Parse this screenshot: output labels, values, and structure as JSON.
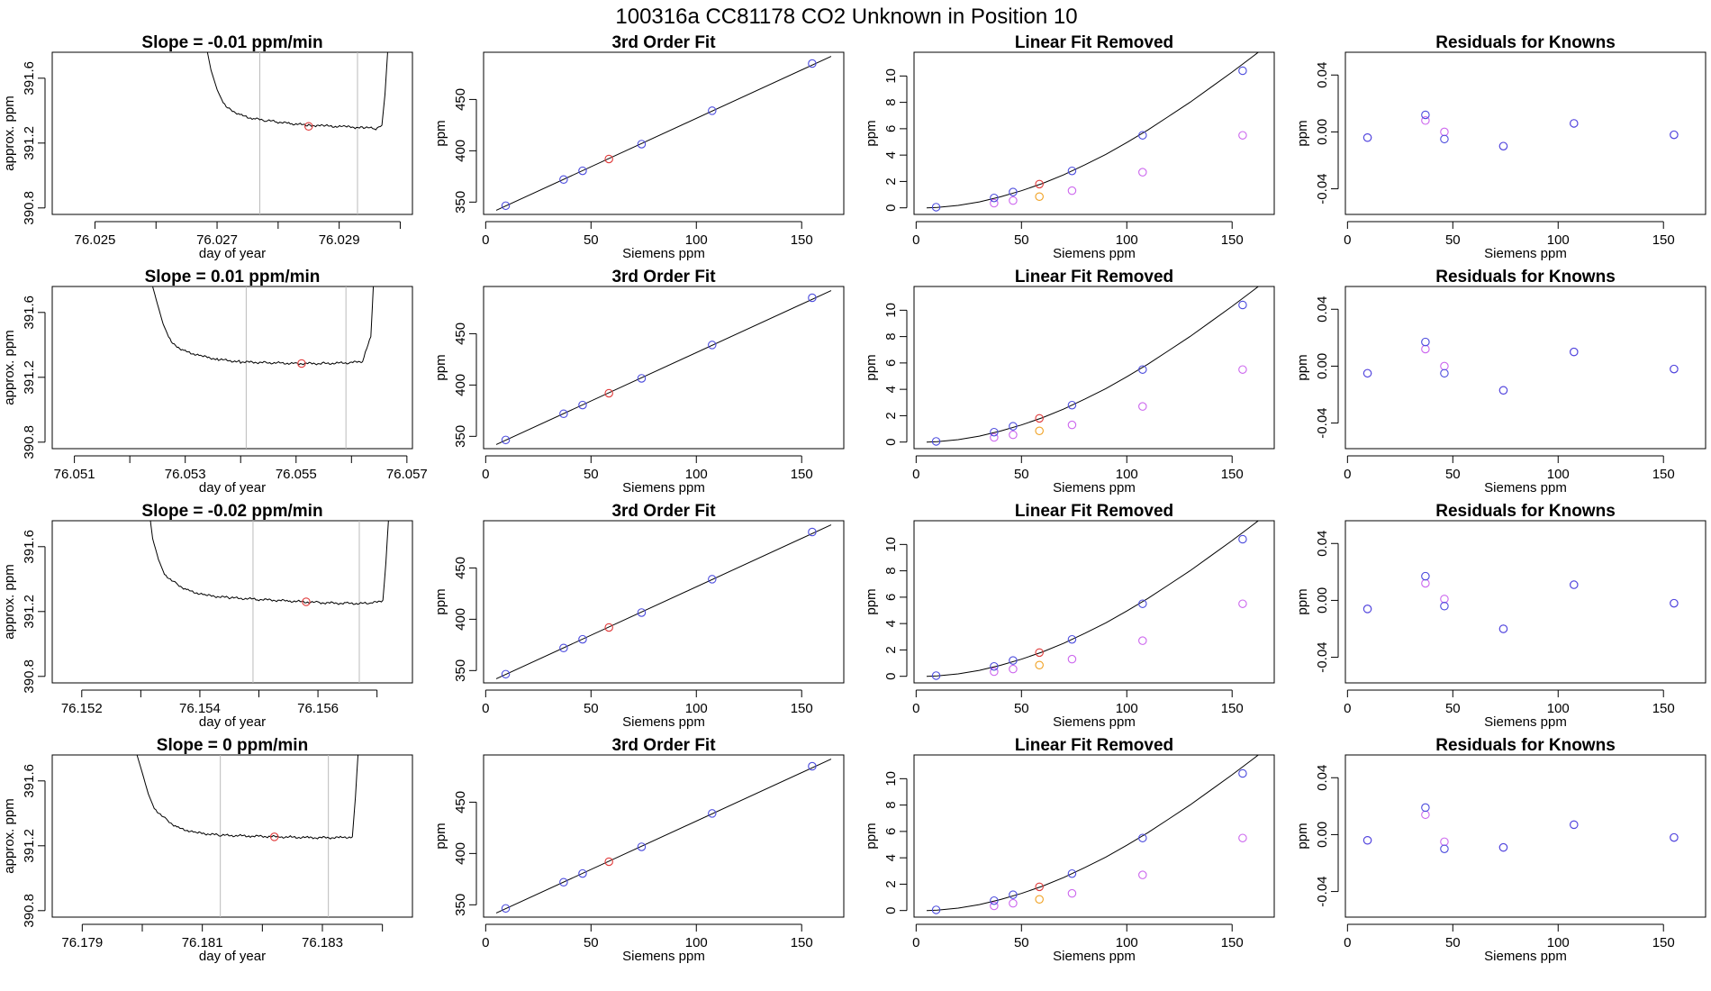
{
  "figure_title": "100316a      CC81178    CO2 Unknown in Position  10",
  "colors": {
    "axis": "#000000",
    "trace": "#000000",
    "vline": "#bbbbbb",
    "sample_marker": "#e03a3a",
    "knowns_marker": "#4b4bdd",
    "linear_removed_marker": "#cc66ee",
    "unknown_removed_marker": "#f0a020"
  },
  "panel_titles": {
    "time_series": [
      "Slope =  -0.01  ppm/min",
      "Slope =  0.01  ppm/min",
      "Slope =  -0.02  ppm/min",
      "Slope =  0  ppm/min"
    ],
    "fit": "3rd Order Fit",
    "linear_removed": "Linear Fit Removed",
    "residuals": "Residuals for Knowns"
  },
  "axis_labels": {
    "ts_x": "day of year",
    "ts_y": "approx. ppm",
    "siemens_x": "Siemens ppm",
    "ppm_y": "ppm"
  },
  "chart_data": [
    {
      "type": "line",
      "row": 0,
      "column": "time_series",
      "title": "Slope =  -0.01  ppm/min",
      "xlabel": "day of year",
      "ylabel": "approx. ppm",
      "xlim": [
        76.0243,
        76.0302
      ],
      "ylim": [
        390.76,
        391.76
      ],
      "x_ticks": [
        "76.025",
        "76.026",
        "76.027",
        "76.028",
        "76.029",
        "76.030"
      ],
      "x_tick_labels": [
        "76.025",
        "",
        "76.027",
        "",
        "76.029",
        ""
      ],
      "y_ticks": [
        "390.8",
        "391.2",
        "391.6"
      ],
      "vlines": [
        76.0277,
        76.0293
      ],
      "sample_point": [
        76.0285,
        391.303
      ],
      "trace": [
        [
          76.02682,
          391.8
        ],
        [
          76.0269,
          391.65
        ],
        [
          76.027,
          391.53
        ],
        [
          76.0271,
          391.45
        ],
        [
          76.0272,
          391.41
        ],
        [
          76.0274,
          391.37
        ],
        [
          76.0276,
          391.35
        ],
        [
          76.0278,
          391.34
        ],
        [
          76.028,
          391.33
        ],
        [
          76.0282,
          391.32
        ],
        [
          76.0285,
          391.31
        ],
        [
          76.0288,
          391.305
        ],
        [
          76.0291,
          391.3
        ],
        [
          76.0294,
          391.295
        ],
        [
          76.0296,
          391.29
        ],
        [
          76.0297,
          391.31
        ],
        [
          76.02975,
          391.5
        ],
        [
          76.0298,
          391.8
        ]
      ]
    },
    {
      "type": "line",
      "row": 1,
      "column": "time_series",
      "title": "Slope =  0.01  ppm/min",
      "xlabel": "day of year",
      "ylabel": "approx. ppm",
      "xlim": [
        76.0506,
        76.0571
      ],
      "ylim": [
        390.76,
        391.76
      ],
      "x_ticks": [
        "76.051",
        "76.052",
        "76.053",
        "76.054",
        "76.055",
        "76.056",
        "76.057"
      ],
      "x_tick_labels": [
        "76.051",
        "",
        "76.053",
        "",
        "76.055",
        "",
        "76.057"
      ],
      "y_ticks": [
        "390.8",
        "391.2",
        "391.6"
      ],
      "vlines": [
        76.0541,
        76.0559
      ],
      "sample_point": [
        76.0551,
        391.285
      ],
      "trace": [
        [
          76.05238,
          391.8
        ],
        [
          76.0525,
          391.65
        ],
        [
          76.0526,
          391.53
        ],
        [
          76.0527,
          391.45
        ],
        [
          76.0528,
          391.4
        ],
        [
          76.053,
          391.36
        ],
        [
          76.0533,
          391.33
        ],
        [
          76.0536,
          391.31
        ],
        [
          76.054,
          391.295
        ],
        [
          76.0545,
          391.29
        ],
        [
          76.055,
          391.285
        ],
        [
          76.0555,
          391.285
        ],
        [
          76.056,
          391.29
        ],
        [
          76.0562,
          391.3
        ],
        [
          76.05635,
          391.45
        ],
        [
          76.0564,
          391.8
        ]
      ]
    },
    {
      "type": "line",
      "row": 2,
      "column": "time_series",
      "title": "Slope =  -0.02  ppm/min",
      "xlabel": "day of year",
      "ylabel": "approx. ppm",
      "xlim": [
        76.1515,
        76.1576
      ],
      "ylim": [
        390.76,
        391.76
      ],
      "x_ticks": [
        "76.152",
        "76.153",
        "76.154",
        "76.155",
        "76.156",
        "76.157"
      ],
      "x_tick_labels": [
        "76.152",
        "",
        "76.154",
        "",
        "76.156",
        ""
      ],
      "y_ticks": [
        "390.8",
        "391.2",
        "391.6"
      ],
      "vlines": [
        76.1549,
        76.1567
      ],
      "sample_point": [
        76.1558,
        391.26
      ],
      "trace": [
        [
          76.15315,
          391.8
        ],
        [
          76.1532,
          391.65
        ],
        [
          76.1533,
          391.52
        ],
        [
          76.1534,
          391.43
        ],
        [
          76.1536,
          391.37
        ],
        [
          76.1538,
          391.33
        ],
        [
          76.1541,
          391.3
        ],
        [
          76.1545,
          391.285
        ],
        [
          76.155,
          391.275
        ],
        [
          76.1555,
          391.265
        ],
        [
          76.156,
          391.255
        ],
        [
          76.1565,
          391.25
        ],
        [
          76.1569,
          391.25
        ],
        [
          76.1571,
          391.27
        ],
        [
          76.15715,
          391.5
        ],
        [
          76.1572,
          391.8
        ]
      ]
    },
    {
      "type": "line",
      "row": 3,
      "column": "time_series",
      "title": "Slope =  0  ppm/min",
      "xlabel": "day of year",
      "ylabel": "approx. ppm",
      "xlim": [
        76.1785,
        76.1845
      ],
      "ylim": [
        390.76,
        391.76
      ],
      "x_ticks": [
        "76.179",
        "76.180",
        "76.181",
        "76.182",
        "76.183",
        "76.184"
      ],
      "x_tick_labels": [
        "76.179",
        "",
        "76.181",
        "",
        "76.183",
        ""
      ],
      "y_ticks": [
        "390.8",
        "391.2",
        "391.6"
      ],
      "vlines": [
        76.1813,
        76.1831
      ],
      "sample_point": [
        76.1822,
        391.255
      ],
      "trace": [
        [
          76.17988,
          391.8
        ],
        [
          76.18,
          391.65
        ],
        [
          76.1801,
          391.52
        ],
        [
          76.1802,
          391.43
        ],
        [
          76.1804,
          391.36
        ],
        [
          76.1806,
          391.31
        ],
        [
          76.1809,
          391.28
        ],
        [
          76.1813,
          391.265
        ],
        [
          76.1818,
          391.26
        ],
        [
          76.1823,
          391.255
        ],
        [
          76.1828,
          391.25
        ],
        [
          76.1833,
          391.25
        ],
        [
          76.1835,
          391.255
        ],
        [
          76.18355,
          391.5
        ],
        [
          76.1836,
          391.8
        ]
      ]
    },
    {
      "type": "scatter",
      "column": "fit",
      "rows": [
        0,
        1,
        2,
        3
      ],
      "title": "3rd Order Fit",
      "xlabel": "Siemens ppm",
      "ylabel": "ppm",
      "xlim": [
        -1,
        170
      ],
      "ylim": [
        338,
        496
      ],
      "x_ticks": [
        "0",
        "50",
        "100",
        "150"
      ],
      "y_ticks": [
        "350",
        "400",
        "450"
      ],
      "knowns": [
        [
          9.5,
          346.5
        ],
        [
          37,
          372
        ],
        [
          46,
          380.5
        ],
        [
          74,
          406.5
        ],
        [
          107.5,
          439
        ],
        [
          155,
          485
        ]
      ],
      "unknown": [
        [
          58.5,
          392
        ]
      ],
      "fit_line": [
        [
          5,
          342
        ],
        [
          164,
          492
        ]
      ]
    },
    {
      "type": "scatter",
      "column": "linear_removed",
      "rows": [
        0,
        1,
        2,
        3
      ],
      "title": "Linear Fit Removed",
      "xlabel": "Siemens ppm",
      "ylabel": "ppm",
      "xlim": [
        -1,
        170
      ],
      "ylim": [
        -0.5,
        11.8
      ],
      "x_ticks": [
        "0",
        "50",
        "100",
        "150"
      ],
      "y_ticks": [
        "0",
        "2",
        "4",
        "6",
        "8",
        "10"
      ],
      "knowns": [
        [
          9.5,
          0.05
        ],
        [
          37,
          0.75
        ],
        [
          46,
          1.2
        ],
        [
          74,
          2.8
        ],
        [
          107.5,
          5.5
        ],
        [
          155,
          10.4
        ]
      ],
      "linear_removed": [
        [
          37,
          0.35
        ],
        [
          46,
          0.55
        ],
        [
          74,
          1.3
        ],
        [
          107.5,
          2.7
        ],
        [
          155,
          5.5
        ]
      ],
      "unknown": [
        [
          58.5,
          1.8
        ]
      ],
      "unknown_linear_removed": [
        [
          58.5,
          0.85
        ]
      ],
      "fit_curve": [
        [
          5,
          0.0
        ],
        [
          10,
          0.03
        ],
        [
          20,
          0.18
        ],
        [
          30,
          0.45
        ],
        [
          40,
          0.83
        ],
        [
          50,
          1.3
        ],
        [
          60,
          1.85
        ],
        [
          70,
          2.5
        ],
        [
          80,
          3.25
        ],
        [
          90,
          4.05
        ],
        [
          100,
          4.95
        ],
        [
          110,
          5.9
        ],
        [
          120,
          6.95
        ],
        [
          130,
          8.0
        ],
        [
          140,
          9.15
        ],
        [
          150,
          10.3
        ],
        [
          160,
          11.5
        ],
        [
          164,
          12.0
        ]
      ]
    },
    {
      "type": "scatter",
      "column": "residuals",
      "rows": [
        0,
        1,
        2,
        3
      ],
      "title": "Residuals for Knowns",
      "xlabel": "Siemens ppm",
      "ylabel": "ppm",
      "xlim": [
        -1,
        170
      ],
      "ylim": [
        -0.058,
        0.056
      ],
      "x_ticks": [
        "0",
        "50",
        "100",
        "150"
      ],
      "y_ticks": [
        "-0.04",
        "0.00",
        "0.04"
      ],
      "residuals_by_row": [
        {
          "knowns": [
            [
              9.5,
              -0.004
            ],
            [
              37,
              0.012
            ],
            [
              46,
              -0.005
            ],
            [
              74,
              -0.01
            ],
            [
              107.5,
              0.006
            ],
            [
              155,
              -0.002
            ]
          ],
          "linear_removed": [
            [
              9.5,
              -0.004
            ],
            [
              37,
              0.008
            ],
            [
              46,
              0.0
            ],
            [
              74,
              -0.01
            ],
            [
              107.5,
              0.006
            ],
            [
              155,
              -0.002
            ]
          ]
        },
        {
          "knowns": [
            [
              9.5,
              -0.005
            ],
            [
              37,
              0.017
            ],
            [
              46,
              -0.005
            ],
            [
              74,
              -0.017
            ],
            [
              107.5,
              0.01
            ],
            [
              155,
              -0.002
            ]
          ],
          "linear_removed": [
            [
              9.5,
              -0.005
            ],
            [
              37,
              0.012
            ],
            [
              46,
              0.0
            ],
            [
              74,
              -0.017
            ],
            [
              107.5,
              0.01
            ],
            [
              155,
              -0.002
            ]
          ]
        },
        {
          "knowns": [
            [
              9.5,
              -0.006
            ],
            [
              37,
              0.017
            ],
            [
              46,
              -0.004
            ],
            [
              74,
              -0.02
            ],
            [
              107.5,
              0.011
            ],
            [
              155,
              -0.002
            ]
          ],
          "linear_removed": [
            [
              9.5,
              -0.006
            ],
            [
              37,
              0.012
            ],
            [
              46,
              0.001
            ],
            [
              74,
              -0.02
            ],
            [
              107.5,
              0.011
            ],
            [
              155,
              -0.002
            ]
          ]
        },
        {
          "knowns": [
            [
              9.5,
              -0.004
            ],
            [
              37,
              0.019
            ],
            [
              46,
              -0.01
            ],
            [
              74,
              -0.009
            ],
            [
              107.5,
              0.007
            ],
            [
              155,
              -0.002
            ]
          ],
          "linear_removed": [
            [
              9.5,
              -0.004
            ],
            [
              37,
              0.014
            ],
            [
              46,
              -0.005
            ],
            [
              74,
              -0.009
            ],
            [
              107.5,
              0.007
            ],
            [
              155,
              -0.002
            ]
          ]
        }
      ]
    }
  ]
}
